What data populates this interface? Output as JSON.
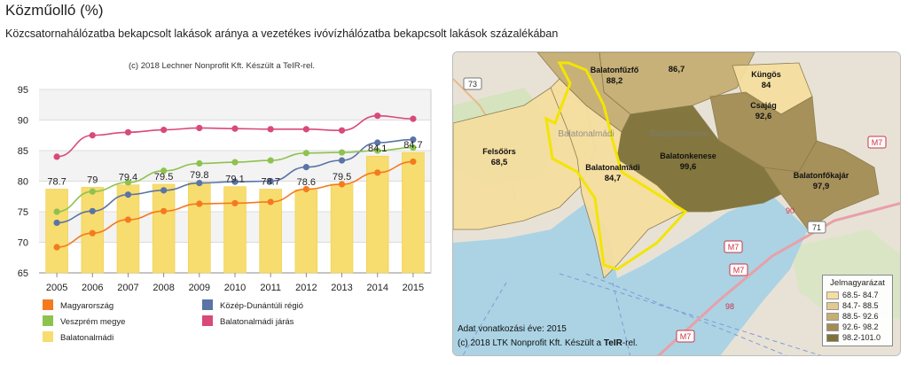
{
  "header": {
    "title": "Közműolló (%)",
    "subtitle": "Közcsatornahálózatba bekapcsolt lakások aránya a vezetékes ivóvízhálózatba bekapcsolt lakások százalékában"
  },
  "chart_data": {
    "type": "bar",
    "credit": "(c) 2018 Lechner Nonprofit Kft. Készült a TeIR-rel.",
    "categories": [
      "2005",
      "2006",
      "2007",
      "2008",
      "2009",
      "2010",
      "2011",
      "2012",
      "2013",
      "2014",
      "2015"
    ],
    "ylim": [
      65,
      95
    ],
    "yticks": [
      65,
      70,
      75,
      80,
      85,
      90,
      95
    ],
    "grid": true,
    "legend_position": "bottom",
    "bars": {
      "name": "Balatonalmádi",
      "color": "#f7dc6f",
      "values": [
        78.7,
        79,
        79.4,
        79.5,
        79.8,
        79.1,
        78.7,
        78.6,
        79.5,
        84.1,
        84.7
      ],
      "labels": [
        "78.7",
        "79",
        "79.4",
        "79.5",
        "79.8",
        "79.1",
        "78.7",
        "78.6",
        "79.5",
        "84.1",
        "84.7"
      ]
    },
    "series": [
      {
        "name": "Magyarország",
        "color": "#f47a20",
        "values": [
          69.2,
          71.5,
          73.7,
          75.1,
          76.3,
          76.4,
          76.6,
          78.7,
          79.5,
          81.4,
          83.2
        ]
      },
      {
        "name": "Közép-Dunántúli régió",
        "color": "#5a74a6",
        "values": [
          73.2,
          75.1,
          77.8,
          78.5,
          79.7,
          79.9,
          80.0,
          82.3,
          83.4,
          86.3,
          86.8
        ]
      },
      {
        "name": "Veszprém megye",
        "color": "#8ec24e",
        "values": [
          75.0,
          78.3,
          79.8,
          81.7,
          82.9,
          83.1,
          83.4,
          84.6,
          84.7,
          85.0,
          85.5
        ]
      },
      {
        "name": "Balatonalmádi járás",
        "color": "#d9497a",
        "values": [
          84.0,
          87.5,
          88.0,
          88.4,
          88.7,
          88.6,
          88.5,
          88.5,
          88.3,
          90.7,
          90.2
        ]
      }
    ],
    "legend_order": [
      "Magyarország",
      "Közép-Dunántúli régió",
      "Veszprém megye",
      "Balatonalmádi járás",
      "Balatonalmádi"
    ]
  },
  "map": {
    "legend_title": "Jelmagyarázat",
    "legend_items": [
      {
        "label": "68.5- 84.7",
        "color": "#f5dea0"
      },
      {
        "label": "84.7- 88.5",
        "color": "#e3c98f"
      },
      {
        "label": "88.5- 92.6",
        "color": "#c6ae73"
      },
      {
        "label": "92.6- 98.2",
        "color": "#a38d55"
      },
      {
        "label": "98.2-101.0",
        "color": "#7e7237"
      }
    ],
    "regions": [
      {
        "name": "Balatonfűzfő",
        "value": "88,2"
      },
      {
        "name": "",
        "value": "86,7"
      },
      {
        "name": "Küngös",
        "value": "84"
      },
      {
        "name": "Csajág",
        "value": "92,6"
      },
      {
        "name": "Felsőörs",
        "value": "68,5"
      },
      {
        "name": "Balatonalmádi",
        "value": "84,7"
      },
      {
        "name": "Balatonkenese",
        "value": "99,6"
      },
      {
        "name": "Balatonfőkajár",
        "value": "97,9"
      }
    ],
    "place_labels": [
      "Balatonalmádi",
      "Balatonkenese"
    ],
    "road_labels": [
      "73",
      "M7",
      "M7",
      "M7",
      "M7",
      "71",
      "90",
      "98"
    ],
    "data_year": "Adat vonatkozási éve: 2015",
    "credit_prefix": "(c) 2018 LTK Nonprofit Kft. Készült a ",
    "credit_bold": "TeIR",
    "credit_suffix": "-rel."
  }
}
